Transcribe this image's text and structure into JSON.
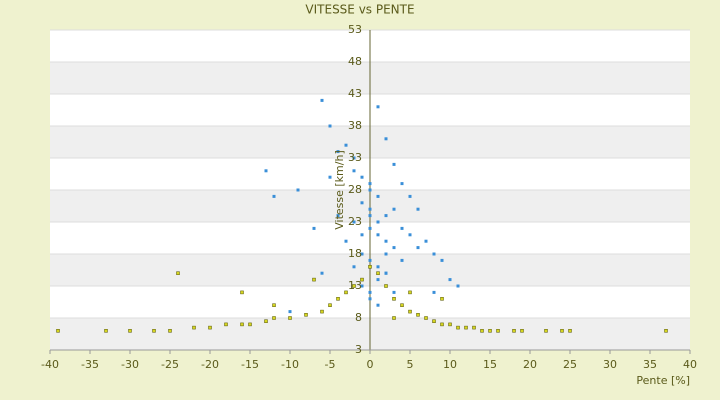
{
  "chart_data": {
    "type": "scatter",
    "title": "VITESSE vs PENTE",
    "xlabel": "Pente [%]",
    "ylabel": "Vitesse [km/h]",
    "xlim": [
      -40,
      40
    ],
    "xticks": [
      -40,
      -35,
      -30,
      -25,
      -20,
      -15,
      -10,
      -5,
      0,
      5,
      10,
      15,
      20,
      25,
      30,
      35,
      40
    ],
    "ylim": [
      3,
      53
    ],
    "yticks": [
      3,
      8,
      13,
      18,
      23,
      28,
      33,
      38,
      43,
      48,
      53
    ],
    "grid": true,
    "series": [
      {
        "color": "#3a8fd8",
        "x": [
          -6,
          -5,
          -3,
          -2,
          -1,
          0,
          1,
          2,
          3,
          4,
          5,
          6,
          -4,
          -2,
          0,
          1,
          2,
          3,
          -1,
          0,
          1,
          2,
          -3,
          -1,
          0,
          2,
          4,
          5,
          7,
          8,
          -7,
          -9,
          -12,
          -13,
          -5,
          -4,
          -2,
          0,
          1,
          3,
          6,
          9,
          10,
          -1,
          0,
          1,
          2,
          -2,
          0,
          1,
          3,
          2,
          0,
          -1,
          1,
          4,
          -6,
          -10,
          8,
          11
        ],
        "values": [
          42,
          38,
          35,
          33,
          30,
          28,
          41,
          36,
          32,
          29,
          27,
          25,
          24,
          23,
          22,
          21,
          20,
          19,
          18,
          17,
          16,
          15,
          20,
          26,
          25,
          24,
          22,
          21,
          20,
          18,
          22,
          28,
          27,
          31,
          30,
          34,
          31,
          29,
          27,
          25,
          19,
          17,
          14,
          13,
          12,
          14,
          15,
          16,
          11,
          10,
          12,
          18,
          24,
          21,
          23,
          17,
          15,
          9,
          12,
          13
        ]
      },
      {
        "color": "#d6d620",
        "x": [
          -39,
          -33,
          -30,
          -27,
          -25,
          -22,
          -20,
          -18,
          -16,
          -15,
          -13,
          -12,
          -10,
          -8,
          -6,
          -5,
          -4,
          -3,
          -2,
          -1,
          0,
          1,
          2,
          3,
          4,
          5,
          6,
          7,
          8,
          9,
          10,
          11,
          12,
          13,
          14,
          15,
          16,
          18,
          19,
          22,
          24,
          25,
          37,
          -24,
          -16,
          -12,
          -7,
          5,
          9,
          3
        ],
        "values": [
          6,
          6,
          6,
          6,
          6,
          6.5,
          6.5,
          7,
          7,
          7,
          7.5,
          8,
          8,
          8.5,
          9,
          10,
          11,
          12,
          13,
          14,
          16,
          15,
          13,
          11,
          10,
          9,
          8.5,
          8,
          7.5,
          7,
          7,
          6.5,
          6.5,
          6.5,
          6,
          6,
          6,
          6,
          6,
          6,
          6,
          6,
          6,
          15,
          12,
          10,
          14,
          12,
          11,
          8
        ]
      }
    ]
  }
}
